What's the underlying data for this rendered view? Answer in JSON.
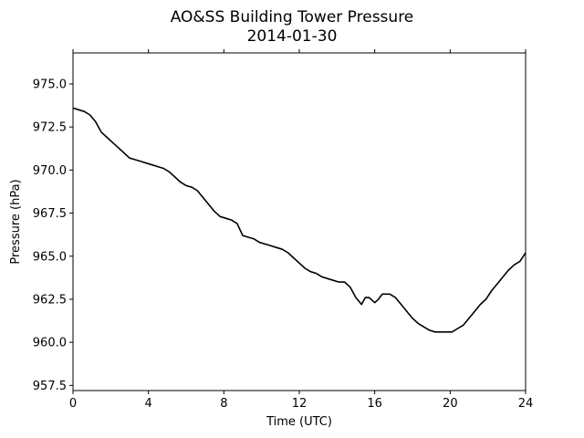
{
  "chart_data": {
    "type": "line",
    "title": "AO&SS Building Tower Pressure",
    "subtitle": "2014-01-30",
    "xlabel": "Time (UTC)",
    "ylabel": "Pressure (hPa)",
    "xlim": [
      0,
      24
    ],
    "ylim": [
      957.2,
      976.8
    ],
    "xticks": [
      0,
      4,
      8,
      12,
      16,
      20,
      24
    ],
    "xtick_labels": [
      "0",
      "4",
      "8",
      "12",
      "16",
      "20",
      "24"
    ],
    "yticks": [
      957.5,
      960.0,
      962.5,
      965.0,
      967.5,
      970.0,
      972.5,
      975.0
    ],
    "ytick_labels": [
      "957.5",
      "960.0",
      "962.5",
      "965.0",
      "967.5",
      "970.0",
      "972.5",
      "975.0"
    ],
    "grid": false,
    "line_color": "#000000",
    "series": [
      {
        "x": [
          0,
          0.3,
          0.6,
          0.9,
          1.2,
          1.5,
          1.8,
          2.1,
          2.4,
          2.7,
          3.0,
          3.3,
          3.6,
          3.9,
          4.2,
          4.5,
          4.8,
          5.1,
          5.4,
          5.7,
          6.0,
          6.3,
          6.6,
          6.9,
          7.2,
          7.5,
          7.8,
          8.1,
          8.4,
          8.7,
          9.0,
          9.3,
          9.6,
          9.9,
          10.2,
          10.5,
          10.8,
          11.1,
          11.4,
          11.7,
          12.0,
          12.3,
          12.6,
          12.9,
          13.2,
          13.5,
          13.8,
          14.1,
          14.4,
          14.7,
          15.0,
          15.3,
          15.5,
          15.7,
          16.0,
          16.2,
          16.4,
          16.6,
          16.8,
          17.1,
          17.4,
          17.7,
          18.0,
          18.3,
          18.6,
          18.9,
          19.2,
          19.5,
          19.8,
          20.1,
          20.4,
          20.7,
          21.0,
          21.3,
          21.6,
          21.9,
          22.2,
          22.5,
          22.8,
          23.1,
          23.4,
          23.7,
          24.0
        ],
        "y": [
          973.6,
          973.5,
          973.4,
          973.2,
          972.8,
          972.2,
          971.9,
          971.6,
          971.3,
          971.0,
          970.7,
          970.6,
          970.5,
          970.4,
          970.3,
          970.2,
          970.1,
          969.9,
          969.6,
          969.3,
          969.1,
          969.0,
          968.8,
          968.4,
          968.0,
          967.6,
          967.3,
          967.2,
          967.1,
          966.9,
          966.2,
          966.1,
          966.0,
          965.8,
          965.7,
          965.6,
          965.5,
          965.4,
          965.2,
          964.9,
          964.6,
          964.3,
          964.1,
          964.0,
          963.8,
          963.7,
          963.6,
          963.5,
          963.5,
          963.2,
          962.6,
          962.2,
          962.6,
          962.6,
          962.3,
          962.5,
          962.8,
          962.8,
          962.8,
          962.6,
          962.2,
          961.8,
          961.4,
          961.1,
          960.9,
          960.7,
          960.6,
          960.6,
          960.6,
          960.6,
          960.8,
          961.0,
          961.4,
          961.8,
          962.2,
          962.5,
          963.0,
          963.4,
          963.8,
          964.2,
          964.5,
          964.7,
          965.2
        ]
      }
    ]
  }
}
